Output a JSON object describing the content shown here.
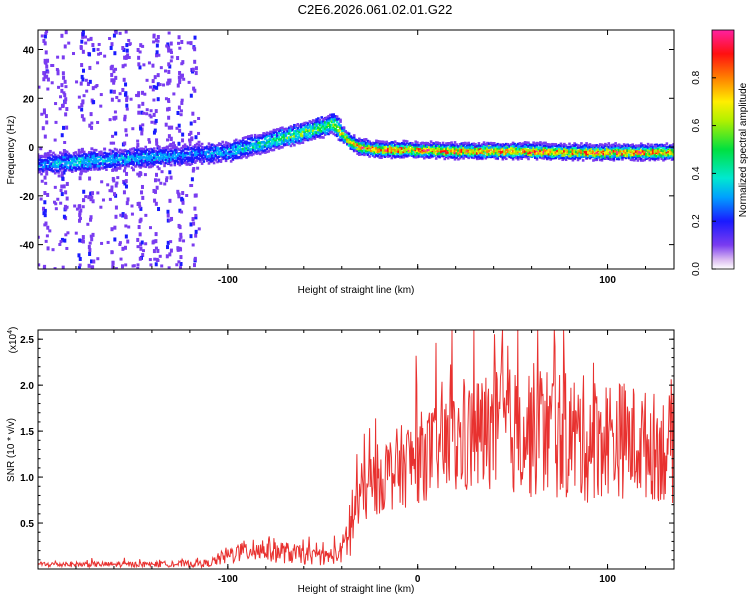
{
  "title": "C2E6.2026.061.02.01.G22",
  "chart_data": [
    {
      "type": "heatmap",
      "name": "spectrogram",
      "xlabel": "Height of straight line (km)",
      "ylabel": "Frequency (Hz)",
      "xlim": [
        -200,
        135
      ],
      "ylim": [
        -50,
        48
      ],
      "xticks": [
        -100,
        0,
        100
      ],
      "xtick_labels": [
        "-100",
        "",
        "100"
      ],
      "yticks": [
        -40,
        -20,
        0,
        20,
        40
      ],
      "ytick_labels": [
        "-40",
        "-20",
        "0",
        "20",
        "40"
      ],
      "colorbar": {
        "label": "Normalized spectral amplitude",
        "range": [
          0,
          1
        ],
        "ticks": [
          0.0,
          0.2,
          0.4,
          0.6,
          0.8
        ],
        "tick_labels": [
          "0.0",
          "0.2",
          "0.4",
          "0.6",
          "0.8"
        ]
      },
      "ridge": {
        "x": [
          -200,
          -180,
          -160,
          -140,
          -120,
          -100,
          -85,
          -70,
          -60,
          -50,
          -45,
          -40,
          -35,
          -30,
          -20,
          0,
          20,
          40,
          60,
          80,
          100,
          120,
          135
        ],
        "freq": [
          -7,
          -6,
          -5,
          -4,
          -3,
          -2,
          1,
          4,
          6,
          8,
          10,
          6,
          2,
          0,
          -1,
          -1,
          -1.5,
          -1.5,
          -1.5,
          -2,
          -2,
          -2,
          -2
        ],
        "amplitude": [
          0.25,
          0.35,
          0.3,
          0.3,
          0.25,
          0.3,
          0.4,
          0.45,
          0.5,
          0.5,
          0.55,
          0.7,
          0.75,
          0.8,
          0.85,
          0.85,
          0.85,
          0.8,
          0.85,
          0.8,
          0.85,
          0.85,
          0.8
        ]
      }
    },
    {
      "type": "line",
      "name": "snr",
      "xlabel": "Height of straight line (km)",
      "ylabel": "SNR (10 * v/v)",
      "y_multiplier_label": "(x10",
      "y_multiplier_exp": "4",
      "xlim": [
        -200,
        135
      ],
      "ylim": [
        0,
        2.6
      ],
      "xticks": [
        -100,
        0,
        100
      ],
      "xtick_labels": [
        "-100",
        "0",
        "100"
      ],
      "yticks": [
        0.5,
        1.0,
        1.5,
        2.0,
        2.5
      ],
      "ytick_labels": [
        "0.5",
        "1.0",
        "1.5",
        "2.0",
        "2.5"
      ],
      "series": [
        {
          "name": "SNR",
          "color": "#e8312f",
          "envelope_x": [
            -200,
            -170,
            -140,
            -110,
            -100,
            -90,
            -80,
            -70,
            -60,
            -50,
            -40,
            -35,
            -30,
            -25,
            -20,
            -10,
            0,
            10,
            20,
            30,
            40,
            50,
            60,
            70,
            80,
            90,
            100,
            110,
            120,
            135
          ],
          "envelope_mean": [
            0.05,
            0.05,
            0.05,
            0.06,
            0.15,
            0.2,
            0.22,
            0.18,
            0.15,
            0.12,
            0.18,
            0.5,
            0.8,
            0.9,
            1.0,
            1.1,
            1.2,
            1.3,
            1.35,
            1.45,
            1.5,
            1.5,
            1.5,
            1.5,
            1.45,
            1.4,
            1.45,
            1.4,
            1.35,
            1.3
          ],
          "envelope_spread": [
            0.03,
            0.03,
            0.03,
            0.04,
            0.1,
            0.12,
            0.15,
            0.12,
            0.1,
            0.08,
            0.12,
            0.5,
            0.35,
            0.35,
            0.4,
            0.45,
            0.5,
            0.5,
            0.6,
            0.65,
            0.7,
            0.7,
            0.75,
            0.75,
            0.7,
            0.7,
            0.65,
            0.65,
            0.6,
            0.6
          ]
        }
      ]
    }
  ]
}
